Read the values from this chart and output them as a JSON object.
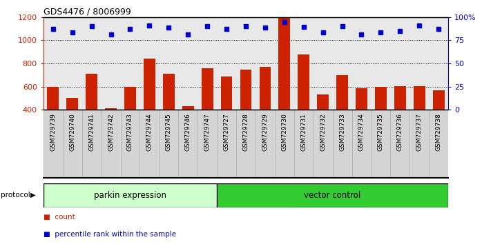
{
  "title": "GDS4476 / 8006999",
  "samples": [
    "GSM729739",
    "GSM729740",
    "GSM729741",
    "GSM729742",
    "GSM729743",
    "GSM729744",
    "GSM729745",
    "GSM729746",
    "GSM729747",
    "GSM729727",
    "GSM729728",
    "GSM729729",
    "GSM729730",
    "GSM729731",
    "GSM729732",
    "GSM729733",
    "GSM729734",
    "GSM729735",
    "GSM729736",
    "GSM729737",
    "GSM729738"
  ],
  "counts": [
    600,
    505,
    710,
    415,
    600,
    840,
    710,
    430,
    760,
    690,
    745,
    770,
    1190,
    880,
    535,
    700,
    585,
    600,
    605,
    605,
    570
  ],
  "percentile_ranks_pct": [
    87.5,
    83.75,
    90.0,
    81.25,
    87.5,
    91.25,
    88.75,
    81.25,
    90.0,
    87.5,
    90.0,
    88.75,
    95.0,
    89.375,
    83.75,
    90.0,
    81.25,
    83.75,
    85.0,
    91.25,
    87.5
  ],
  "parkin_count": 9,
  "vector_count": 12,
  "parkin_label": "parkin expression",
  "vector_label": "vector control",
  "protocol_label": "protocol",
  "bar_color": "#cc2200",
  "dot_color": "#0000cc",
  "parkin_bg": "#ccffcc",
  "vector_bg": "#33cc33",
  "sample_area_bg": "#d4d4d4",
  "plot_bg": "#e8e8e8",
  "ylim_left": [
    400,
    1200
  ],
  "ylim_right": [
    0,
    100
  ],
  "yticks_left": [
    400,
    600,
    800,
    1000,
    1200
  ],
  "yticks_right": [
    0,
    25,
    50,
    75,
    100
  ],
  "ytick_labels_right": [
    "0",
    "25",
    "50",
    "75",
    "100%"
  ],
  "legend_count_label": "count",
  "legend_pct_label": "percentile rank within the sample"
}
